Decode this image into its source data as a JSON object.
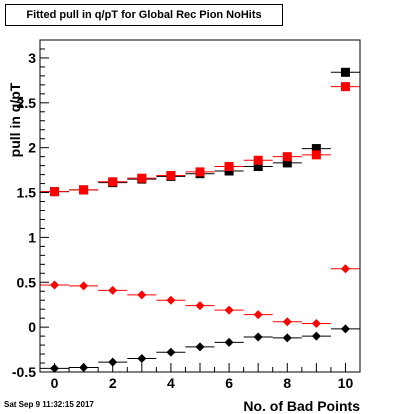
{
  "title": "Fitted pull in q/pT  for Global Rec Pion NoHits",
  "datestamp": "Sat Sep  9 11:32:15 2017",
  "chart_data": {
    "type": "scatter",
    "xlabel": "No. of Bad Points",
    "ylabel": "pull in q/pT",
    "xlim": [
      -0.5,
      10.5
    ],
    "ylim": [
      -0.5,
      3.2
    ],
    "xticks": [
      0,
      2,
      4,
      6,
      8,
      10
    ],
    "yticks": [
      -0.5,
      0,
      0.5,
      1,
      1.5,
      2,
      2.5,
      3
    ],
    "ytick_labels": [
      "-0.5",
      "0",
      "0.5",
      "1",
      "1.5",
      "2",
      "2.5",
      "3"
    ],
    "grid": false,
    "series": [
      {
        "marker": "square",
        "color": "#000000",
        "x": [
          0,
          1,
          2,
          3,
          4,
          5,
          6,
          7,
          8,
          9,
          10
        ],
        "values": [
          1.51,
          1.53,
          1.61,
          1.65,
          1.68,
          1.71,
          1.74,
          1.79,
          1.83,
          1.99,
          2.84
        ]
      },
      {
        "marker": "square",
        "color": "#ff0000",
        "x": [
          0,
          1,
          2,
          3,
          4,
          5,
          6,
          7,
          8,
          9,
          10
        ],
        "values": [
          1.51,
          1.53,
          1.62,
          1.66,
          1.69,
          1.73,
          1.79,
          1.86,
          1.9,
          1.92,
          2.68
        ]
      },
      {
        "marker": "diamond",
        "color": "#ff0000",
        "x": [
          0,
          1,
          2,
          3,
          4,
          5,
          6,
          7,
          8,
          9,
          10
        ],
        "values": [
          0.47,
          0.46,
          0.41,
          0.36,
          0.3,
          0.24,
          0.19,
          0.14,
          0.06,
          0.04,
          0.65
        ]
      },
      {
        "marker": "diamond",
        "color": "#000000",
        "x": [
          0,
          1,
          2,
          3,
          4,
          5,
          6,
          7,
          8,
          9,
          10
        ],
        "values": [
          -0.46,
          -0.45,
          -0.39,
          -0.35,
          -0.28,
          -0.22,
          -0.17,
          -0.11,
          -0.12,
          -0.1,
          -0.02
        ]
      }
    ]
  }
}
